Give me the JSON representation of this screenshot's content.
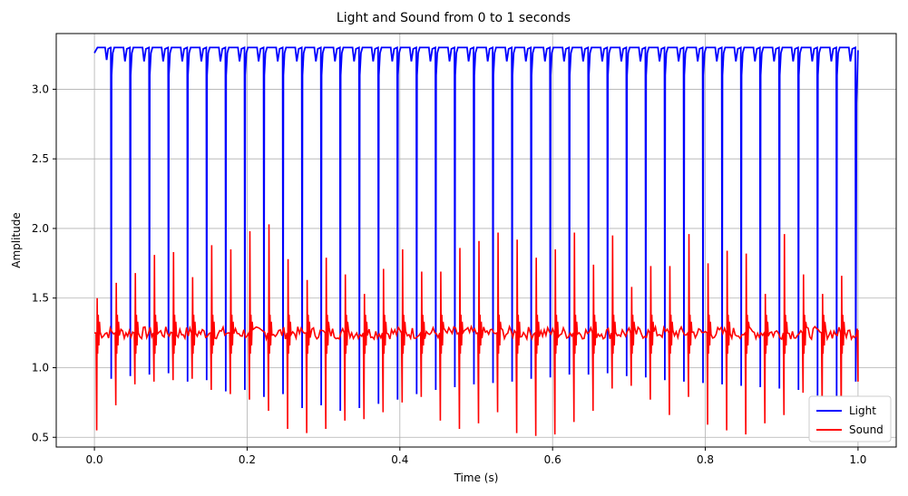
{
  "chart_data": {
    "type": "line",
    "title": "Light and Sound from 0 to 1 seconds",
    "xlabel": "Time (s)",
    "ylabel": "Amplitude",
    "xlim": [
      -0.05,
      1.05
    ],
    "ylim": [
      0.43,
      3.4
    ],
    "xticks": [
      0.0,
      0.2,
      0.4,
      0.6,
      0.8,
      1.0
    ],
    "xtick_labels": [
      "0.0",
      "0.2",
      "0.4",
      "0.6",
      "0.8",
      "1.0"
    ],
    "yticks": [
      0.5,
      1.0,
      1.5,
      2.0,
      2.5,
      3.0
    ],
    "ytick_labels": [
      "0.5",
      "1.0",
      "1.5",
      "2.0",
      "2.5",
      "3.0"
    ],
    "grid": true,
    "legend_position": "lower-right",
    "colors": {
      "Light": "#0000ff",
      "Sound": "#ff0000"
    },
    "series": [
      {
        "name": "Light",
        "description": "Square-like pulse train held near 3.30, dropping to roughly 0.8–1.0 about every 0.025 s with small dips near 3.2 between pulses",
        "baseline": 3.3,
        "pulse_period_s": 0.025,
        "pulse_count": 40,
        "x": [
          0.0,
          0.022,
          0.047,
          0.072,
          0.097,
          0.122,
          0.147,
          0.172,
          0.197,
          0.222,
          0.247,
          0.272,
          0.297,
          0.322,
          0.347,
          0.372,
          0.397,
          0.422,
          0.447,
          0.472,
          0.497,
          0.522,
          0.547,
          0.572,
          0.597,
          0.622,
          0.647,
          0.672,
          0.697,
          0.722,
          0.747,
          0.772,
          0.797,
          0.822,
          0.847,
          0.872,
          0.897,
          0.922,
          0.947,
          0.972,
          0.997
        ],
        "values": [
          3.26,
          0.92,
          0.94,
          0.95,
          0.96,
          0.9,
          0.91,
          0.83,
          0.84,
          0.79,
          0.81,
          0.71,
          0.73,
          0.69,
          0.71,
          0.74,
          0.77,
          0.81,
          0.84,
          0.86,
          0.88,
          0.89,
          0.9,
          0.92,
          0.93,
          0.95,
          0.95,
          0.96,
          0.94,
          0.93,
          0.91,
          0.9,
          0.89,
          0.88,
          0.87,
          0.86,
          0.85,
          0.84,
          0.8,
          0.78,
          3.28
        ]
      },
      {
        "name": "Sound",
        "description": "Noisy signal around 1.25 with positive spikes up to ~2.0 and negative spikes down to ~0.5 every ~0.025 s",
        "baseline": 1.25,
        "x": [
          0.003,
          0.028,
          0.053,
          0.078,
          0.103,
          0.128,
          0.153,
          0.178,
          0.203,
          0.228,
          0.253,
          0.278,
          0.303,
          0.328,
          0.353,
          0.378,
          0.403,
          0.428,
          0.453,
          0.478,
          0.503,
          0.528,
          0.553,
          0.578,
          0.603,
          0.628,
          0.653,
          0.678,
          0.703,
          0.728,
          0.753,
          0.778,
          0.803,
          0.828,
          0.853,
          0.878,
          0.903,
          0.928,
          0.953,
          0.978
        ],
        "peaks": [
          1.5,
          1.61,
          1.68,
          1.81,
          1.83,
          1.65,
          1.88,
          1.85,
          1.98,
          2.03,
          1.78,
          1.63,
          1.79,
          1.67,
          1.53,
          1.71,
          1.85,
          1.69,
          1.69,
          1.86,
          1.91,
          1.97,
          1.92,
          1.79,
          1.85,
          1.97,
          1.74,
          1.95,
          1.58,
          1.73,
          1.73,
          1.96,
          1.75,
          1.84,
          1.82,
          1.53,
          1.96,
          1.67,
          1.53,
          1.66
        ],
        "troughs": [
          0.55,
          0.73,
          0.88,
          0.9,
          0.91,
          0.92,
          0.84,
          0.81,
          0.77,
          0.69,
          0.56,
          0.53,
          0.56,
          0.62,
          0.63,
          0.68,
          0.75,
          0.79,
          0.62,
          0.56,
          0.6,
          0.68,
          0.53,
          0.51,
          0.52,
          0.61,
          0.69,
          0.85,
          0.87,
          0.77,
          0.66,
          0.79,
          0.59,
          0.55,
          0.52,
          0.6,
          0.66,
          0.82,
          0.7,
          0.62
        ]
      }
    ]
  }
}
